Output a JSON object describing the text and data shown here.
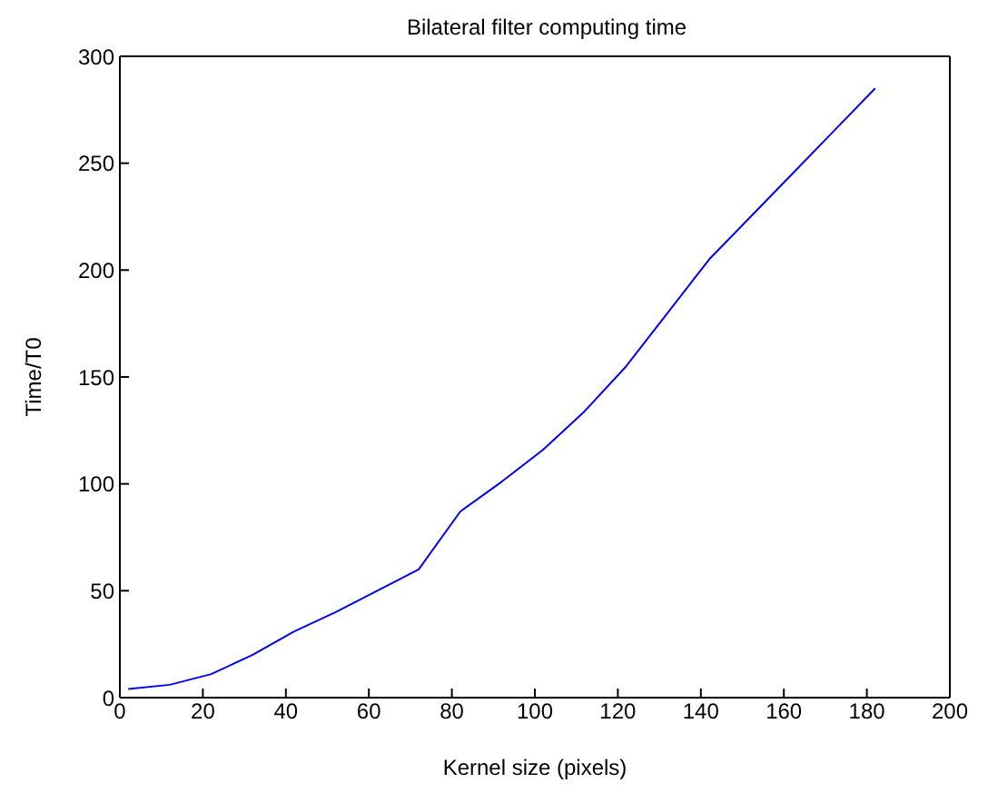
{
  "chart_data": {
    "type": "line",
    "title": "Bilateral filter computing time",
    "xlabel": "Kernel size (pixels)",
    "ylabel": "Time/T0",
    "x": [
      2,
      12,
      22,
      32,
      42,
      52,
      62,
      72,
      82,
      92,
      102,
      112,
      122,
      132,
      142,
      152,
      162,
      172,
      182
    ],
    "series": [
      {
        "color": "#0000ff",
        "values": [
          4,
          6,
          11,
          20,
          31,
          40,
          50,
          60,
          87,
          101,
          116,
          134,
          155,
          180,
          205,
          225,
          245,
          265,
          285
        ]
      }
    ],
    "xlim": [
      0,
      200
    ],
    "xticks": [
      0,
      20,
      40,
      60,
      80,
      100,
      120,
      140,
      160,
      180,
      200
    ],
    "ylim": [
      0,
      300
    ],
    "yticks": [
      0,
      50,
      100,
      150,
      200,
      250,
      300
    ],
    "grid": false,
    "legend": false,
    "marker": "none",
    "line_style": "solid"
  }
}
